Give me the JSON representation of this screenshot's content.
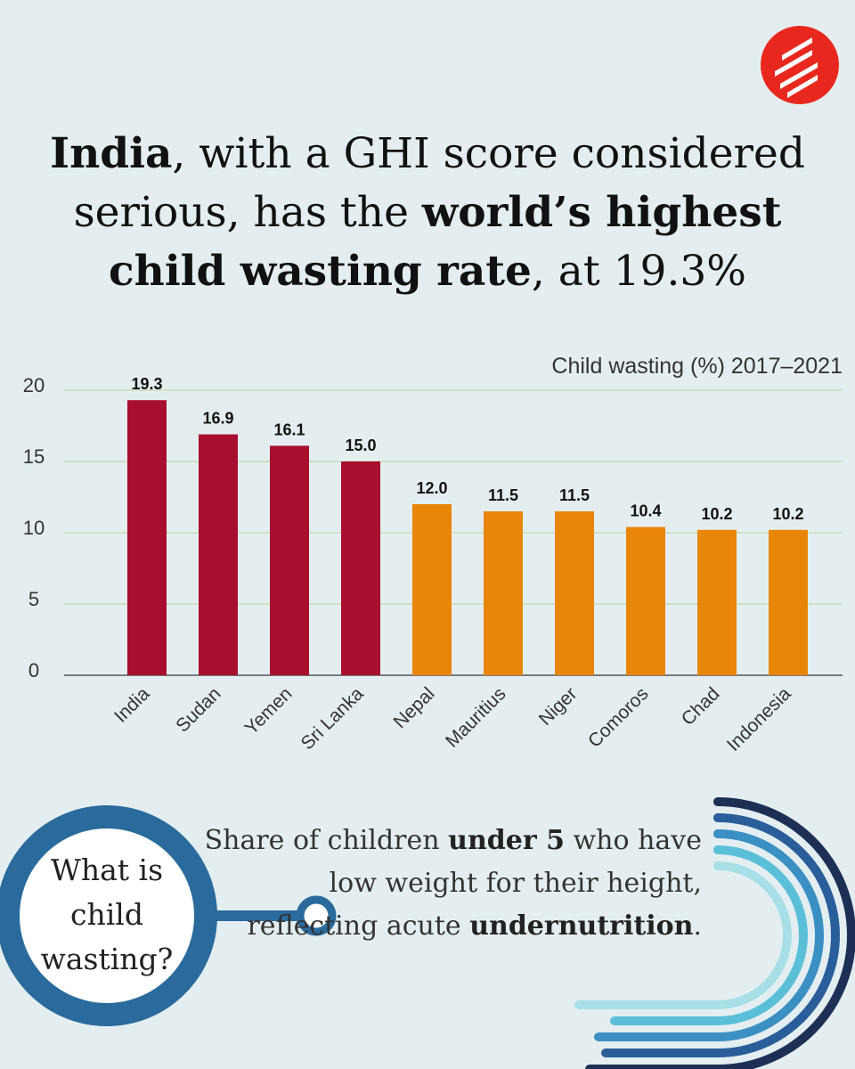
{
  "brand": {
    "accent": "#e8281e",
    "icon": "indian-express-logo-icon"
  },
  "headline": {
    "p1_bold": "India",
    "p2": ", with a GHI score considered serious, has the ",
    "p3_bold": "world’s highest child wasting rate",
    "p4": ", at 19.3%"
  },
  "colors": {
    "top4": "#a80f2e",
    "rest": "#e8860a",
    "ring": "#2a6a9c",
    "background": "#e4eef1"
  },
  "chart_data": {
    "type": "bar",
    "title": "Child wasting (%) 2017–2021",
    "categories": [
      "India",
      "Sudan",
      "Yemen",
      "Sri Lanka",
      "Nepal",
      "Mauritius",
      "Niger",
      "Comoros",
      "Chad",
      "Indonesia"
    ],
    "values": [
      19.3,
      16.9,
      16.1,
      15.0,
      12.0,
      11.5,
      11.5,
      10.4,
      10.2,
      10.2
    ],
    "value_labels": [
      "19.3",
      "16.9",
      "16.1",
      "15.0",
      "12.0",
      "11.5",
      "11.5",
      "10.4",
      "10.2",
      "10.2"
    ],
    "yticks": [
      0,
      5,
      10,
      15,
      20
    ],
    "ylim": [
      0,
      20
    ],
    "xlabel": "",
    "ylabel": "",
    "grid": true,
    "highlight_count": 4
  },
  "definition": {
    "question": [
      "What is",
      "child",
      "wasting?"
    ],
    "text_p1": "Share of children ",
    "text_b1": "under 5",
    "text_p2": " who have low weight for their height, reflecting acute ",
    "text_b2": "undernutrition",
    "text_p3": "."
  }
}
